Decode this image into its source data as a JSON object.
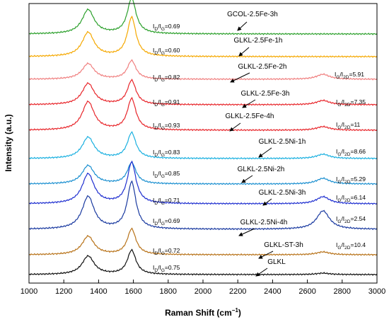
{
  "chart_data": {
    "type": "line",
    "xlabel": "Raman Shift (cm",
    "xlabel_sup": "−1",
    "xlabel_suffix": ")",
    "ylabel": "Intensity (a.u.)",
    "xlim": [
      1000,
      3000
    ],
    "x_ticks": [
      1000,
      1200,
      1400,
      1600,
      1800,
      2000,
      2200,
      2400,
      2600,
      2800,
      3000
    ],
    "grid": false,
    "legend": "none",
    "series": [
      {
        "name": "GCOL-2.5Fe-3h",
        "color": "#2ca02c",
        "d_peak": 34,
        "g_peak": 50,
        "peak_2d": 0,
        "id_ig": "0.69",
        "ig_i2d": ""
      },
      {
        "name": "GLKL-2.5Fe-1h",
        "color": "#f5a800",
        "d_peak": 34,
        "g_peak": 55,
        "peak_2d": 0,
        "id_ig": "0.60",
        "ig_i2d": ""
      },
      {
        "name": "GLKL-2.5Fe-2h",
        "color": "#f08080",
        "d_peak": 22,
        "g_peak": 26,
        "peak_2d": 7,
        "id_ig": "0.82",
        "ig_i2d": "5.91"
      },
      {
        "name": "GLKL-2.5Fe-3h",
        "color": "#e8262b",
        "d_peak": 30,
        "g_peak": 34,
        "peak_2d": 6,
        "id_ig": "0.91",
        "ig_i2d": "7.35"
      },
      {
        "name": "GLKL-2.5Fe-4h",
        "color": "#e8262b",
        "d_peak": 40,
        "g_peak": 44,
        "peak_2d": 5,
        "id_ig": "0.93",
        "ig_i2d": "11"
      },
      {
        "name": "GLKL-2.5Ni-1h",
        "color": "#1ab0e0",
        "d_peak": 30,
        "g_peak": 36,
        "peak_2d": 6,
        "id_ig": "0.83",
        "ig_i2d": "8.66"
      },
      {
        "name": "GLKL-2.5Ni-2h",
        "color": "#1a8fd0",
        "d_peak": 26,
        "g_peak": 30,
        "peak_2d": 8,
        "id_ig": "0.85",
        "ig_i2d": "5.29"
      },
      {
        "name": "GLKL-2.5Ni-3h",
        "color": "#1f2fd0",
        "d_peak": 42,
        "g_peak": 58,
        "peak_2d": 10,
        "id_ig": "0.71",
        "ig_i2d": "6.14"
      },
      {
        "name": "GLKL-2.5Ni-4h",
        "color": "#1a3aa0",
        "d_peak": 46,
        "g_peak": 66,
        "peak_2d": 26,
        "id_ig": "0.69",
        "ig_i2d": "2.54"
      },
      {
        "name": "GLKL-ST-3h",
        "color": "#b8731a",
        "d_peak": 26,
        "g_peak": 36,
        "peak_2d": 4,
        "id_ig": "0.72",
        "ig_i2d": "10.4"
      },
      {
        "name": "GLKL",
        "color": "#111111",
        "d_peak": 26,
        "g_peak": 34,
        "peak_2d": 2,
        "id_ig": "0.75",
        "ig_i2d": ""
      }
    ]
  }
}
